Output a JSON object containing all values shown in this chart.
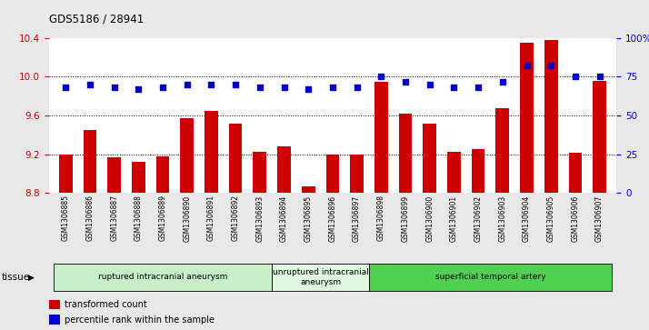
{
  "title": "GDS5186 / 28941",
  "samples": [
    "GSM1306885",
    "GSM1306886",
    "GSM1306887",
    "GSM1306888",
    "GSM1306889",
    "GSM1306890",
    "GSM1306891",
    "GSM1306892",
    "GSM1306893",
    "GSM1306894",
    "GSM1306895",
    "GSM1306896",
    "GSM1306897",
    "GSM1306898",
    "GSM1306899",
    "GSM1306900",
    "GSM1306901",
    "GSM1306902",
    "GSM1306903",
    "GSM1306904",
    "GSM1306905",
    "GSM1306906",
    "GSM1306907"
  ],
  "bar_values": [
    9.2,
    9.45,
    9.17,
    9.12,
    9.18,
    9.57,
    9.65,
    9.52,
    9.23,
    9.28,
    8.87,
    9.2,
    9.2,
    9.95,
    9.62,
    9.52,
    9.23,
    9.25,
    9.68,
    10.35,
    10.38,
    9.22,
    9.96
  ],
  "dot_values": [
    68,
    70,
    68,
    67,
    68,
    70,
    70,
    70,
    68,
    68,
    67,
    68,
    68,
    75,
    72,
    70,
    68,
    68,
    72,
    82,
    82,
    75,
    75
  ],
  "groups": [
    {
      "label": "ruptured intracranial aneurysm",
      "start": 0,
      "end": 9,
      "color": "#c8f0c8"
    },
    {
      "label": "unruptured intracranial\naneurysm",
      "start": 9,
      "end": 13,
      "color": "#e0f8e0"
    },
    {
      "label": "superficial temporal artery",
      "start": 13,
      "end": 23,
      "color": "#50d050"
    }
  ],
  "bar_color": "#cc0000",
  "dot_color": "#0000cc",
  "ylim_left": [
    8.8,
    10.4
  ],
  "ylim_right": [
    0,
    100
  ],
  "yticks_left": [
    8.8,
    9.2,
    9.6,
    10.0,
    10.4
  ],
  "yticks_right": [
    0,
    25,
    50,
    75,
    100
  ],
  "ytick_labels_right": [
    "0",
    "25",
    "50",
    "75",
    "100%"
  ],
  "fig_bg_color": "#e8e8e8",
  "plot_bg_color": "#ffffff",
  "xtick_bg_color": "#d0d0d0",
  "legend_bar_label": "transformed count",
  "legend_dot_label": "percentile rank within the sample"
}
